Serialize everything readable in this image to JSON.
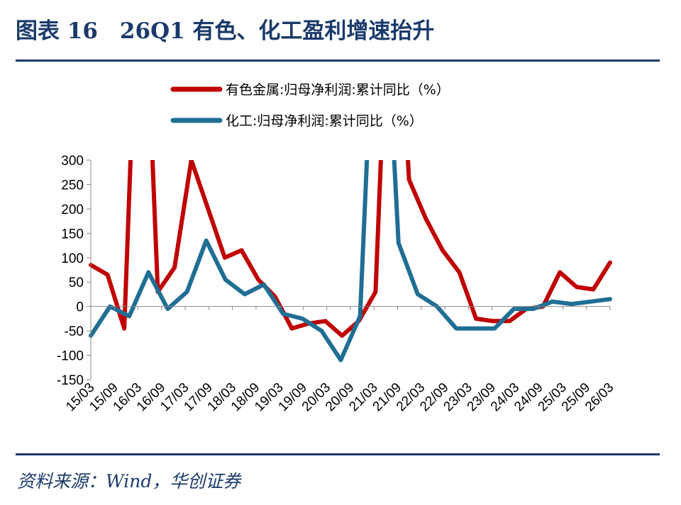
{
  "header": {
    "title": "图表 16　26Q1 有色、化工盈利增速抬升"
  },
  "footer": {
    "source": "资料来源：Wind，华创证券"
  },
  "chart_data": {
    "type": "line",
    "title": "",
    "xlabel": "",
    "ylabel": "",
    "ylim": [
      -150,
      300
    ],
    "yticks": [
      300,
      250,
      200,
      150,
      100,
      50,
      0,
      -50,
      -100,
      -150
    ],
    "xticks": [
      "15/03",
      "15/09",
      "16/03",
      "16/09",
      "17/03",
      "17/09",
      "18/03",
      "18/09",
      "19/03",
      "19/09",
      "20/03",
      "20/09",
      "21/03",
      "21/09",
      "22/03",
      "22/09",
      "23/03",
      "23/09",
      "24/03",
      "24/09",
      "25/03",
      "25/09",
      "26/03"
    ],
    "grid": false,
    "legend_position": "top",
    "series": [
      {
        "name": "有色金属:归母净利润:累计同比（%）",
        "color": "#c00000",
        "values": [
          85,
          65,
          -45,
          null,
          30,
          80,
          300,
          200,
          100,
          115,
          55,
          20,
          -45,
          -35,
          -30,
          -60,
          -30,
          30,
          null,
          260,
          180,
          115,
          70,
          -25,
          -30,
          -30,
          -5,
          0,
          70,
          40,
          35,
          90
        ]
      },
      {
        "name": "化工:归母净利润:累计同比（%）",
        "color": "#1f6e94",
        "values": [
          -60,
          0,
          -20,
          70,
          -5,
          30,
          135,
          55,
          25,
          45,
          -15,
          -25,
          -50,
          -110,
          -20,
          null,
          130,
          25,
          0,
          -45,
          -45,
          -45,
          -5,
          -5,
          10,
          5,
          10,
          15
        ]
      }
    ]
  }
}
